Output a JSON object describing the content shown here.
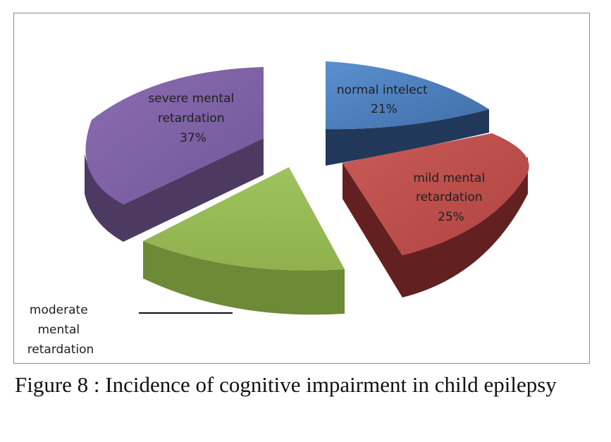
{
  "chart_data": {
    "type": "pie",
    "style": "3d-exploded",
    "slices": [
      {
        "label": "normal intelect",
        "pct_label": "21%",
        "value": 21,
        "color": "#4f81bd"
      },
      {
        "label": "mild mental retardation",
        "pct_label": "25%",
        "value": 25,
        "color": "#c0504d"
      },
      {
        "label": "moderate mental retardation",
        "pct_label": "",
        "value": 17,
        "color": "#9bbb59"
      },
      {
        "label": "severe mental retardation",
        "pct_label": "37%",
        "value": 37,
        "color": "#8064a2"
      }
    ]
  },
  "caption": "Figure 8 : Incidence of cognitive impairment in child epilepsy"
}
